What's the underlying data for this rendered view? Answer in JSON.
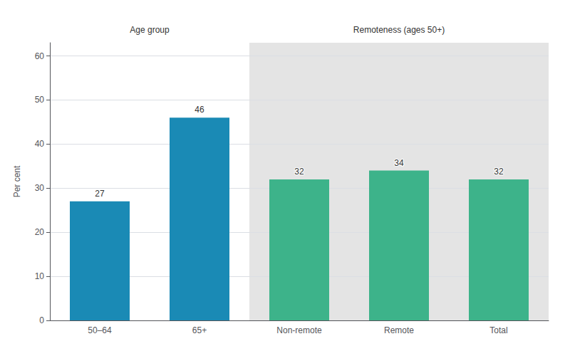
{
  "chart_data": {
    "type": "bar",
    "categories": [
      "50–64",
      "65+",
      "Non-remote",
      "Remote",
      "Total"
    ],
    "values": [
      27,
      46,
      32,
      34,
      32
    ],
    "colors": [
      "#1a8ab5",
      "#1a8ab5",
      "#3db38a",
      "#3db38a",
      "#3db38a"
    ],
    "ylabel": "Per cent",
    "ylim": [
      0,
      63
    ],
    "yticks": [
      0,
      10,
      20,
      30,
      40,
      50,
      60
    ],
    "annotations": [
      "Age group",
      "Remoteness (ages 50+)"
    ],
    "data_labels": true,
    "grid": true
  }
}
